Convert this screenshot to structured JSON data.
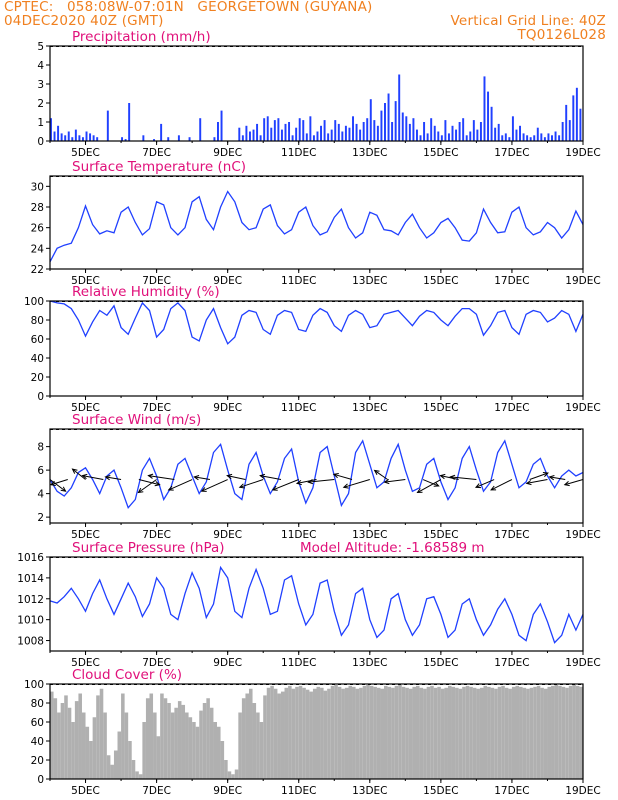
{
  "header": {
    "line1_left": "CPTEC:   058:08W-07:01N   GEORGETOWN (GUYANA)",
    "line2_left": "04DEC2020 40Z (GMT)",
    "line2_right": "Vertical Grid Line: 40Z",
    "line3_right": "TQ0126L028"
  },
  "colors": {
    "header": "#f08020",
    "panel_title": "#e0107a",
    "series": "#2040ff",
    "cloud": "#b0b0b0",
    "axis": "#000000"
  },
  "x_ticks": [
    "5DEC",
    "7DEC",
    "9DEC",
    "11DEC",
    "13DEC",
    "15DEC",
    "17DEC",
    "19DEC"
  ],
  "chart_data": [
    {
      "id": "precip",
      "type": "bar",
      "title": "Precipitation (mm/h)",
      "x_range_days": [
        4.0,
        19.0
      ],
      "ylim": [
        0,
        5
      ],
      "yticks": [
        0,
        1,
        2,
        3,
        4,
        5
      ],
      "x": [
        4.0,
        4.1,
        4.2,
        4.3,
        4.4,
        4.5,
        4.6,
        4.7,
        4.8,
        4.9,
        5.0,
        5.1,
        5.2,
        5.3,
        5.6,
        6.0,
        6.1,
        6.2,
        6.6,
        6.9,
        7.1,
        7.3,
        7.6,
        7.9,
        8.2,
        8.6,
        8.7,
        8.8,
        9.3,
        9.4,
        9.5,
        9.6,
        9.7,
        9.8,
        9.9,
        10.0,
        10.1,
        10.2,
        10.3,
        10.4,
        10.5,
        10.6,
        10.7,
        10.8,
        10.9,
        11.0,
        11.1,
        11.2,
        11.3,
        11.4,
        11.5,
        11.6,
        11.7,
        11.8,
        11.9,
        12.0,
        12.1,
        12.2,
        12.3,
        12.4,
        12.5,
        12.6,
        12.7,
        12.8,
        12.9,
        13.0,
        13.1,
        13.2,
        13.3,
        13.4,
        13.5,
        13.6,
        13.7,
        13.8,
        13.9,
        14.0,
        14.1,
        14.2,
        14.3,
        14.4,
        14.5,
        14.6,
        14.7,
        14.8,
        14.9,
        15.0,
        15.1,
        15.2,
        15.3,
        15.4,
        15.5,
        15.6,
        15.7,
        15.8,
        15.9,
        16.0,
        16.1,
        16.2,
        16.3,
        16.4,
        16.5,
        16.6,
        16.7,
        16.8,
        16.9,
        17.0,
        17.1,
        17.2,
        17.3,
        17.4,
        17.5,
        17.6,
        17.7,
        17.8,
        17.9,
        18.0,
        18.1,
        18.2,
        18.3,
        18.4,
        18.5,
        18.6,
        18.7,
        18.8,
        18.9
      ],
      "values": [
        1.2,
        0.5,
        0.8,
        0.4,
        0.3,
        0.5,
        0.2,
        0.6,
        0.3,
        0.2,
        0.5,
        0.4,
        0.3,
        0.2,
        1.6,
        0.2,
        0.1,
        2.0,
        0.3,
        0.1,
        0.9,
        0.2,
        0.3,
        0.2,
        1.2,
        0.2,
        1.0,
        1.6,
        0.7,
        0.3,
        0.8,
        0.5,
        0.6,
        0.9,
        0.3,
        1.2,
        1.3,
        0.7,
        1.1,
        1.2,
        0.6,
        0.9,
        1.0,
        0.3,
        0.7,
        1.2,
        1.1,
        0.4,
        1.3,
        0.3,
        0.5,
        0.8,
        1.1,
        0.4,
        0.6,
        1.1,
        0.9,
        0.5,
        0.8,
        0.7,
        1.3,
        0.9,
        0.6,
        1.0,
        1.2,
        2.2,
        1.1,
        0.8,
        1.6,
        2.0,
        2.5,
        1.0,
        2.1,
        3.5,
        1.5,
        1.3,
        0.9,
        1.2,
        0.6,
        0.3,
        1.0,
        0.4,
        1.2,
        0.8,
        0.5,
        0.3,
        1.1,
        0.4,
        0.8,
        0.6,
        1.0,
        1.2,
        0.3,
        0.5,
        1.1,
        0.6,
        1.0,
        3.4,
        2.6,
        1.8,
        0.7,
        0.9,
        0.3,
        0.4,
        0.2,
        1.3,
        0.6,
        0.8,
        0.4,
        0.3,
        0.2,
        0.3,
        0.7,
        0.4,
        0.2,
        0.4,
        0.3,
        0.5,
        0.3,
        1.0,
        1.9,
        1.1,
        2.4,
        2.8,
        1.7
      ]
    },
    {
      "id": "temp",
      "type": "line",
      "title": "Surface Temperature (nC)",
      "x_range_days": [
        4.0,
        19.0
      ],
      "ylim": [
        22,
        31
      ],
      "yticks": [
        22,
        24,
        26,
        28,
        30
      ],
      "x": [
        4.0,
        4.2,
        4.4,
        4.6,
        4.8,
        5.0,
        5.2,
        5.4,
        5.6,
        5.8,
        6.0,
        6.2,
        6.4,
        6.6,
        6.8,
        7.0,
        7.2,
        7.4,
        7.6,
        7.8,
        8.0,
        8.2,
        8.4,
        8.6,
        8.8,
        9.0,
        9.2,
        9.4,
        9.6,
        9.8,
        10.0,
        10.2,
        10.4,
        10.6,
        10.8,
        11.0,
        11.2,
        11.4,
        11.6,
        11.8,
        12.0,
        12.2,
        12.4,
        12.6,
        12.8,
        13.0,
        13.2,
        13.4,
        13.6,
        13.8,
        14.0,
        14.2,
        14.4,
        14.6,
        14.8,
        15.0,
        15.2,
        15.4,
        15.6,
        15.8,
        16.0,
        16.2,
        16.4,
        16.6,
        16.8,
        17.0,
        17.2,
        17.4,
        17.6,
        17.8,
        18.0,
        18.2,
        18.4,
        18.6,
        18.8,
        19.0
      ],
      "values": [
        22.7,
        24.0,
        24.3,
        24.5,
        26.0,
        28.1,
        26.3,
        25.4,
        25.7,
        25.5,
        27.5,
        28.0,
        26.5,
        25.3,
        25.9,
        28.5,
        28.2,
        26.0,
        25.3,
        26.0,
        28.5,
        29.0,
        26.8,
        25.8,
        28.0,
        29.5,
        28.5,
        26.5,
        25.8,
        26.0,
        27.8,
        28.2,
        26.2,
        25.4,
        25.8,
        27.5,
        28.0,
        26.2,
        25.3,
        25.6,
        27.0,
        27.8,
        26.0,
        25.0,
        25.5,
        27.5,
        27.2,
        25.8,
        25.7,
        25.3,
        26.5,
        27.3,
        26.0,
        25.0,
        25.5,
        26.5,
        26.9,
        26.0,
        24.8,
        24.7,
        25.5,
        27.8,
        26.5,
        25.5,
        25.6,
        27.5,
        28.0,
        26.0,
        25.3,
        25.6,
        26.5,
        26.0,
        25.0,
        25.8,
        27.6,
        26.3
      ]
    },
    {
      "id": "rh",
      "type": "line",
      "title": "Relative Humidity (%)",
      "x_range_days": [
        4.0,
        19.0
      ],
      "ylim": [
        0,
        100
      ],
      "yticks": [
        0,
        20,
        40,
        60,
        80,
        100
      ],
      "x": [
        4.0,
        4.2,
        4.4,
        4.6,
        4.8,
        5.0,
        5.2,
        5.4,
        5.6,
        5.8,
        6.0,
        6.2,
        6.4,
        6.6,
        6.8,
        7.0,
        7.2,
        7.4,
        7.6,
        7.8,
        8.0,
        8.2,
        8.4,
        8.6,
        8.8,
        9.0,
        9.2,
        9.4,
        9.6,
        9.8,
        10.0,
        10.2,
        10.4,
        10.6,
        10.8,
        11.0,
        11.2,
        11.4,
        11.6,
        11.8,
        12.0,
        12.2,
        12.4,
        12.6,
        12.8,
        13.0,
        13.2,
        13.4,
        13.6,
        13.8,
        14.0,
        14.2,
        14.4,
        14.6,
        14.8,
        15.0,
        15.2,
        15.4,
        15.6,
        15.8,
        16.0,
        16.2,
        16.4,
        16.6,
        16.8,
        17.0,
        17.2,
        17.4,
        17.6,
        17.8,
        18.0,
        18.2,
        18.4,
        18.6,
        18.8,
        19.0
      ],
      "values": [
        100,
        98,
        97,
        92,
        80,
        63,
        78,
        90,
        85,
        95,
        72,
        65,
        82,
        98,
        90,
        62,
        70,
        92,
        98,
        90,
        62,
        58,
        80,
        92,
        72,
        55,
        62,
        85,
        90,
        88,
        70,
        65,
        85,
        90,
        88,
        70,
        68,
        85,
        92,
        88,
        74,
        68,
        85,
        90,
        86,
        72,
        74,
        86,
        88,
        90,
        82,
        74,
        84,
        90,
        88,
        80,
        74,
        84,
        92,
        92,
        86,
        64,
        74,
        88,
        90,
        72,
        65,
        86,
        90,
        88,
        78,
        82,
        90,
        86,
        68,
        86
      ]
    },
    {
      "id": "wind",
      "type": "line",
      "title": "Surface Wind (m/s)",
      "x_range_days": [
        4.0,
        19.0
      ],
      "ylim": [
        1.5,
        9.5
      ],
      "yticks": [
        2,
        4,
        6,
        8
      ],
      "x": [
        4.0,
        4.2,
        4.4,
        4.6,
        4.8,
        5.0,
        5.2,
        5.4,
        5.6,
        5.8,
        6.0,
        6.2,
        6.4,
        6.6,
        6.8,
        7.0,
        7.2,
        7.4,
        7.6,
        7.8,
        8.0,
        8.2,
        8.4,
        8.6,
        8.8,
        9.0,
        9.2,
        9.4,
        9.6,
        9.8,
        10.0,
        10.2,
        10.4,
        10.6,
        10.8,
        11.0,
        11.2,
        11.4,
        11.6,
        11.8,
        12.0,
        12.2,
        12.4,
        12.6,
        12.8,
        13.0,
        13.2,
        13.4,
        13.6,
        13.8,
        14.0,
        14.2,
        14.4,
        14.6,
        14.8,
        15.0,
        15.2,
        15.4,
        15.6,
        15.8,
        16.0,
        16.2,
        16.4,
        16.6,
        16.8,
        17.0,
        17.2,
        17.4,
        17.6,
        17.8,
        18.0,
        18.2,
        18.4,
        18.6,
        18.8,
        19.0
      ],
      "values": [
        5.2,
        4.2,
        3.8,
        4.5,
        5.8,
        6.2,
        5.2,
        4.0,
        5.5,
        6.0,
        4.5,
        2.8,
        3.5,
        6.0,
        7.0,
        5.5,
        3.5,
        4.5,
        6.5,
        7.0,
        5.5,
        4.0,
        5.0,
        7.5,
        8.2,
        6.0,
        4.0,
        3.5,
        6.5,
        7.5,
        5.5,
        4.0,
        5.0,
        7.0,
        7.8,
        5.0,
        3.2,
        4.5,
        7.5,
        8.0,
        5.5,
        3.0,
        4.0,
        7.5,
        8.5,
        6.5,
        4.5,
        5.0,
        7.0,
        8.2,
        6.0,
        4.2,
        4.5,
        6.5,
        7.0,
        5.0,
        3.5,
        4.5,
        7.0,
        8.0,
        6.0,
        4.2,
        5.0,
        7.5,
        8.5,
        6.5,
        4.5,
        5.0,
        6.5,
        7.0,
        5.5,
        4.5,
        5.5,
        6.0,
        5.5,
        5.8
      ],
      "arrows_x": [
        4.0,
        4.5,
        5.0,
        5.5,
        6.0,
        6.5,
        7.0,
        7.5,
        8.0,
        8.5,
        9.0,
        9.5,
        10.0,
        10.5,
        11.0,
        11.5,
        12.0,
        12.5,
        13.0,
        13.5,
        14.0,
        14.5,
        15.0,
        15.5,
        16.0,
        16.5,
        17.0,
        17.5,
        18.0,
        18.5,
        19.0
      ],
      "arrows_u": [
        1.2,
        -1.3,
        -1.0,
        -1.6,
        -1.2,
        1.6,
        -1.4,
        -2.0,
        -1.8,
        -1.2,
        -2.0,
        -1.4,
        -1.8,
        -1.6,
        -2.0,
        -1.5,
        -2.0,
        -1.4,
        -2.0,
        -1.0,
        -1.6,
        1.2,
        -1.8,
        -1.4,
        -2.0,
        -1.4,
        -1.6,
        1.4,
        -1.6,
        -1.2,
        -1.4
      ],
      "arrows_v": [
        -0.9,
        -0.4,
        0.8,
        0.3,
        0.2,
        -0.4,
        -1.0,
        0.3,
        -0.8,
        0.2,
        -0.9,
        0.3,
        -0.6,
        0.3,
        -0.8,
        -0.3,
        -0.2,
        0.4,
        -0.6,
        0.7,
        -0.2,
        -0.5,
        -1.0,
        0.3,
        0.2,
        -0.6,
        -0.8,
        0.5,
        -0.3,
        0.2,
        -0.4
      ]
    },
    {
      "id": "pres",
      "type": "line",
      "title": "Surface Pressure (hPa)",
      "annotation": "Model Altitude: -1.68589 m",
      "x_range_days": [
        4.0,
        19.0
      ],
      "ylim": [
        1007,
        1016
      ],
      "yticks": [
        1008,
        1010,
        1012,
        1014,
        1016
      ],
      "x": [
        4.0,
        4.2,
        4.4,
        4.6,
        4.8,
        5.0,
        5.2,
        5.4,
        5.6,
        5.8,
        6.0,
        6.2,
        6.4,
        6.6,
        6.8,
        7.0,
        7.2,
        7.4,
        7.6,
        7.8,
        8.0,
        8.2,
        8.4,
        8.6,
        8.8,
        9.0,
        9.2,
        9.4,
        9.6,
        9.8,
        10.0,
        10.2,
        10.4,
        10.6,
        10.8,
        11.0,
        11.2,
        11.4,
        11.6,
        11.8,
        12.0,
        12.2,
        12.4,
        12.6,
        12.8,
        13.0,
        13.2,
        13.4,
        13.6,
        13.8,
        14.0,
        14.2,
        14.4,
        14.6,
        14.8,
        15.0,
        15.2,
        15.4,
        15.6,
        15.8,
        16.0,
        16.2,
        16.4,
        16.6,
        16.8,
        17.0,
        17.2,
        17.4,
        17.6,
        17.8,
        18.0,
        18.2,
        18.4,
        18.6,
        18.8,
        19.0
      ],
      "values": [
        1011.8,
        1011.6,
        1012.2,
        1013.0,
        1012.0,
        1010.8,
        1012.5,
        1013.8,
        1012.0,
        1010.5,
        1012.0,
        1013.5,
        1012.2,
        1010.3,
        1011.5,
        1014.0,
        1013.0,
        1010.5,
        1010.0,
        1012.5,
        1014.5,
        1013.0,
        1010.2,
        1011.5,
        1015.0,
        1014.0,
        1010.8,
        1010.2,
        1013.0,
        1014.8,
        1013.0,
        1010.5,
        1010.8,
        1013.8,
        1014.2,
        1011.5,
        1009.5,
        1010.5,
        1013.5,
        1013.8,
        1010.8,
        1008.5,
        1009.5,
        1012.5,
        1013.0,
        1010.0,
        1008.3,
        1009.0,
        1012.0,
        1012.5,
        1010.0,
        1008.5,
        1009.5,
        1012.0,
        1012.2,
        1010.5,
        1008.3,
        1009.0,
        1011.5,
        1012.0,
        1010.0,
        1008.5,
        1009.5,
        1011.0,
        1012.0,
        1010.5,
        1008.5,
        1008.0,
        1010.5,
        1011.5,
        1009.8,
        1007.8,
        1008.5,
        1010.5,
        1009.0,
        1010.5
      ]
    },
    {
      "id": "cloud",
      "type": "bar",
      "title": "Cloud Cover (%)",
      "x_range_days": [
        4.0,
        19.0
      ],
      "ylim": [
        0,
        100
      ],
      "yticks": [
        0,
        20,
        40,
        60,
        80,
        100
      ],
      "x": [
        4.0,
        4.1,
        4.2,
        4.3,
        4.4,
        4.5,
        4.6,
        4.7,
        4.8,
        4.9,
        5.0,
        5.1,
        5.2,
        5.3,
        5.4,
        5.5,
        5.6,
        5.7,
        5.8,
        5.9,
        6.0,
        6.1,
        6.2,
        6.3,
        6.4,
        6.5,
        6.6,
        6.7,
        6.8,
        6.9,
        7.0,
        7.1,
        7.2,
        7.3,
        7.4,
        7.5,
        7.6,
        7.7,
        7.8,
        7.9,
        8.0,
        8.1,
        8.2,
        8.3,
        8.4,
        8.5,
        8.6,
        8.7,
        8.8,
        8.9,
        9.0,
        9.1,
        9.2,
        9.3,
        9.4,
        9.5,
        9.6,
        9.7,
        9.8,
        9.9,
        10.0,
        10.1,
        10.2,
        10.3,
        10.4,
        10.5,
        10.6,
        10.7,
        10.8,
        10.9,
        11.0,
        11.1,
        11.2,
        11.3,
        11.4,
        11.5,
        11.6,
        11.7,
        11.8,
        11.9,
        12.0,
        12.1,
        12.2,
        12.3,
        12.4,
        12.5,
        12.6,
        12.7,
        12.8,
        12.9,
        13.0,
        13.1,
        13.2,
        13.3,
        13.4,
        13.5,
        13.6,
        13.7,
        13.8,
        13.9,
        14.0,
        14.1,
        14.2,
        14.3,
        14.4,
        14.5,
        14.6,
        14.7,
        14.8,
        14.9,
        15.0,
        15.1,
        15.2,
        15.3,
        15.4,
        15.5,
        15.6,
        15.7,
        15.8,
        15.9,
        16.0,
        16.1,
        16.2,
        16.3,
        16.4,
        16.5,
        16.6,
        16.7,
        16.8,
        16.9,
        17.0,
        17.1,
        17.2,
        17.3,
        17.4,
        17.5,
        17.6,
        17.7,
        17.8,
        17.9,
        18.0,
        18.1,
        18.2,
        18.3,
        18.4,
        18.5,
        18.6,
        18.7,
        18.8,
        18.9
      ],
      "values": [
        92,
        85,
        70,
        80,
        88,
        75,
        60,
        82,
        90,
        70,
        55,
        40,
        65,
        88,
        95,
        70,
        25,
        15,
        30,
        50,
        90,
        70,
        40,
        20,
        8,
        5,
        60,
        85,
        90,
        70,
        45,
        90,
        85,
        80,
        70,
        75,
        82,
        78,
        70,
        65,
        60,
        55,
        72,
        80,
        85,
        75,
        60,
        55,
        40,
        20,
        8,
        5,
        10,
        70,
        85,
        90,
        95,
        80,
        70,
        60,
        88,
        96,
        98,
        95,
        90,
        92,
        96,
        98,
        95,
        97,
        98,
        96,
        94,
        92,
        95,
        97,
        96,
        93,
        95,
        98,
        99,
        97,
        95,
        96,
        98,
        97,
        95,
        96,
        98,
        99,
        98,
        97,
        96,
        95,
        98,
        97,
        96,
        98,
        99,
        97,
        96,
        95,
        97,
        98,
        96,
        95,
        97,
        98,
        96,
        97,
        95,
        96,
        98,
        97,
        96,
        95,
        97,
        98,
        97,
        96,
        95,
        96,
        98,
        97,
        96,
        95,
        97,
        98,
        96,
        95,
        97,
        98,
        97,
        96,
        95,
        96,
        97,
        98,
        96,
        95,
        97,
        98,
        99,
        98,
        97,
        96,
        98,
        99,
        98,
        97
      ]
    }
  ]
}
